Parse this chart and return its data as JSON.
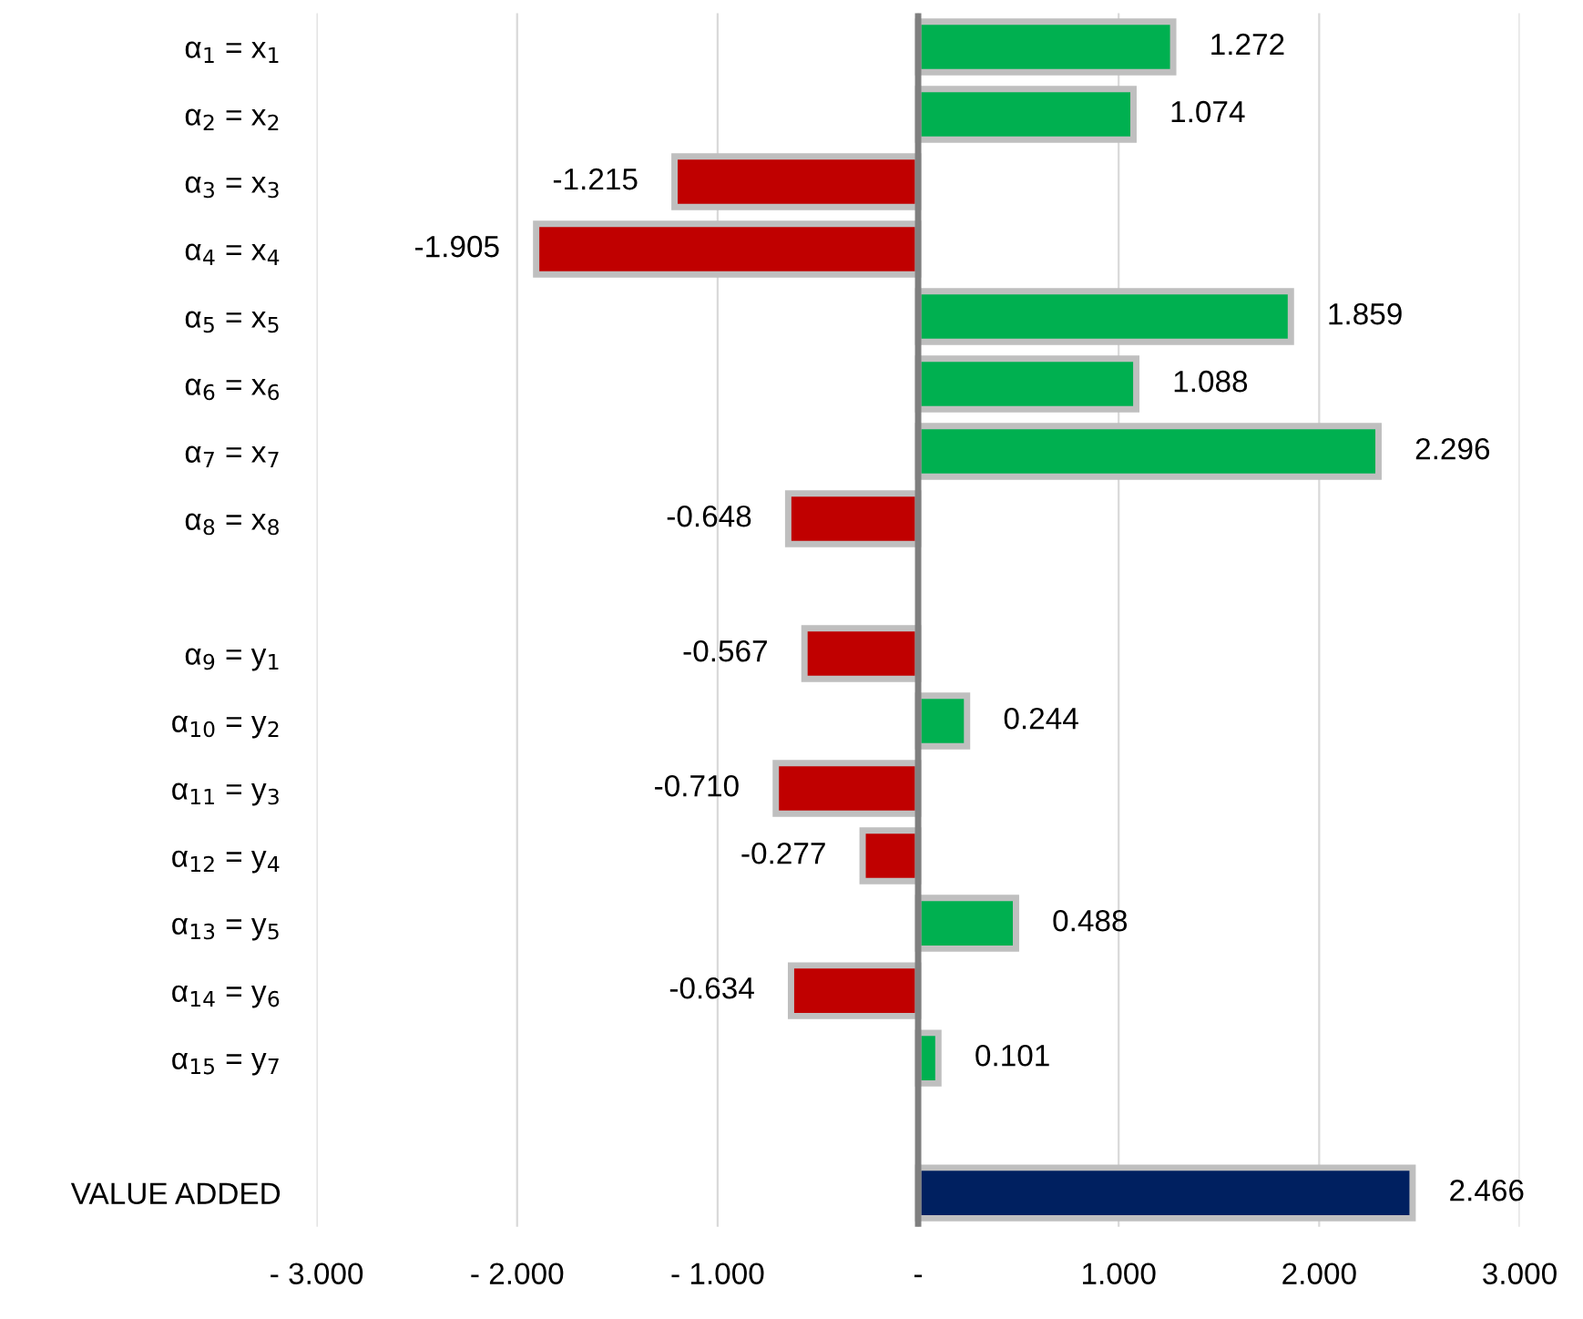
{
  "chart_data": {
    "type": "bar",
    "orientation": "horizontal",
    "categories": [
      "α$_{1}$ = x$_{1}$",
      "α$_{2}$ = x$_{2}$",
      "α$_{3}$ = x$_{3}$",
      "α$_{4}$ = x$_{4}$",
      "α$_{5}$ = x$_{5}$",
      "α$_{6}$ = x$_{6}$",
      "α$_{7}$ = x$_{7}$",
      "α$_{8}$ = x$_{8}$",
      null,
      "α$_{9}$ = y$_{1}$",
      "α$_{10}$ = y$_{2}$",
      "α$_{11}$ = y$_{3}$",
      "α$_{12}$ = y$_{4}$",
      "α$_{13}$ = y$_{5}$",
      "α$_{14}$ = y$_{6}$",
      "α$_{15}$ = y$_{7}$",
      null,
      "VALUE ADDED"
    ],
    "values": [
      1.272,
      1.074,
      -1.215,
      -1.905,
      1.859,
      1.088,
      2.296,
      -0.648,
      null,
      -0.567,
      0.244,
      -0.71,
      -0.277,
      0.488,
      -0.634,
      0.101,
      null,
      2.466
    ],
    "value_labels": [
      "1.272",
      "1.074",
      "-1.215",
      "-1.905",
      "1.859",
      "1.088",
      "2.296",
      "-0.648",
      null,
      "-0.567",
      "0.244",
      "-0.710",
      "-0.277",
      "0.488",
      "-0.634",
      "0.101",
      null,
      "2.466"
    ],
    "colors": [
      "#00b050",
      "#00b050",
      "#c00000",
      "#c00000",
      "#00b050",
      "#00b050",
      "#00b050",
      "#c00000",
      null,
      "#c00000",
      "#00b050",
      "#c00000",
      "#c00000",
      "#00b050",
      "#c00000",
      "#00b050",
      null,
      "#002060"
    ],
    "xlim": [
      -3,
      3
    ],
    "xticks": [
      {
        "value": -3,
        "label": "- 3.000"
      },
      {
        "value": -2,
        "label": "- 2.000"
      },
      {
        "value": -1,
        "label": "- 1.000"
      },
      {
        "value": 0,
        "label": "-"
      },
      {
        "value": 1,
        "label": "1.000"
      },
      {
        "value": 2,
        "label": "2.000"
      },
      {
        "value": 3,
        "label": "3.000"
      }
    ],
    "ref_lines": [
      {
        "axis": "x",
        "value": 0,
        "color": "#7f7f7f"
      }
    ],
    "grid": "x"
  }
}
